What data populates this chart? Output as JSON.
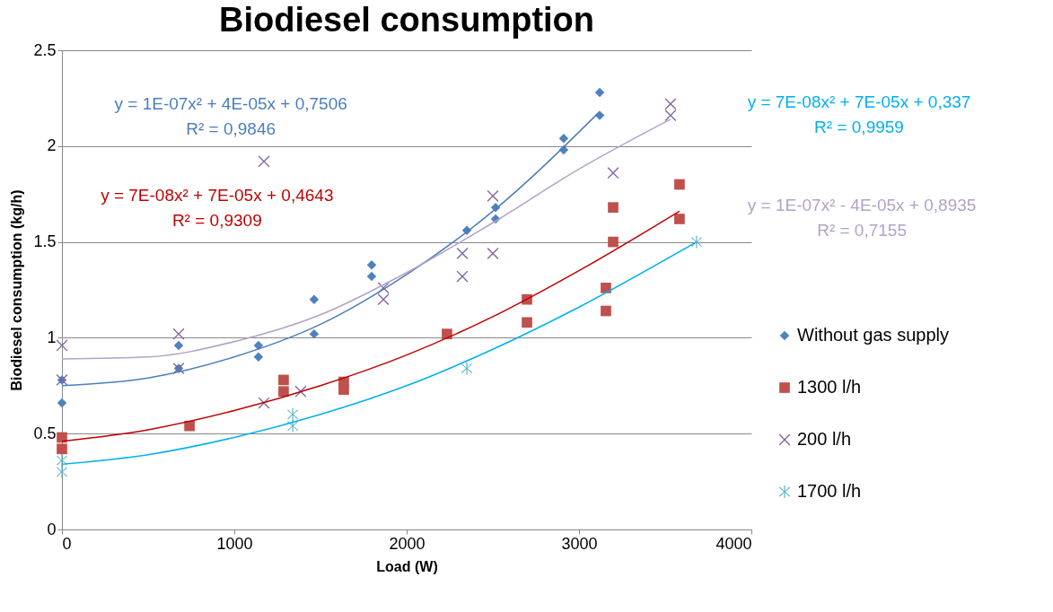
{
  "chart_data": {
    "type": "scatter",
    "title": "Biodiesel consumption",
    "xlabel": "Load (W)",
    "ylabel": "Biodiesel consumption (kg/h)",
    "xlim": [
      0,
      4000
    ],
    "xticks": [
      0,
      1000,
      2000,
      3000,
      4000
    ],
    "ylim": [
      0,
      2.5
    ],
    "yticks": [
      0,
      0.5,
      1,
      1.5,
      2,
      2.5
    ],
    "grid": "y",
    "legend": "right",
    "series": [
      {
        "name": "Without gas supply",
        "color": "#4f81bd",
        "marker": "diamond",
        "x": [
          0,
          0,
          677,
          677,
          1140,
          1140,
          1463,
          1463,
          1797,
          1797,
          2349,
          2516,
          2516,
          2911,
          2911,
          3120,
          3120
        ],
        "values": [
          0.78,
          0.66,
          0.96,
          0.84,
          0.96,
          0.9,
          1.2,
          1.02,
          1.38,
          1.32,
          1.56,
          1.68,
          1.62,
          2.04,
          1.98,
          2.28,
          2.16
        ]
      },
      {
        "name": "1300 l/h",
        "color": "#c0504d",
        "marker": "square",
        "x": [
          0,
          0,
          740,
          1286,
          1286,
          1635,
          1635,
          2234,
          2698,
          2698,
          3156,
          3156,
          3198,
          3198,
          3583,
          3583
        ],
        "values": [
          0.48,
          0.42,
          0.54,
          0.78,
          0.72,
          0.77,
          0.73,
          1.02,
          1.2,
          1.08,
          1.26,
          1.14,
          1.68,
          1.5,
          1.8,
          1.62
        ]
      },
      {
        "name": "200 l/h",
        "color": "#8064a2",
        "marker": "cross",
        "x": [
          0,
          0,
          677,
          677,
          1172,
          1172,
          1385,
          1865,
          1865,
          2323,
          2323,
          2500,
          2500,
          3198,
          3531,
          3531
        ],
        "values": [
          0.96,
          0.78,
          1.02,
          0.84,
          1.92,
          0.66,
          0.72,
          1.26,
          1.2,
          1.44,
          1.32,
          1.74,
          1.44,
          1.86,
          2.22,
          2.16
        ]
      },
      {
        "name": "1700 l/h",
        "color": "#4bacc6",
        "marker": "star",
        "x": [
          0,
          0,
          1339,
          1339,
          2349,
          3682
        ],
        "values": [
          0.36,
          0.3,
          0.6,
          0.54,
          0.84,
          1.5
        ]
      },
      {
        "type": "line",
        "color": "#4a7ebb",
        "marker": "none",
        "x": [
          0,
          500,
          1000,
          1500,
          2000,
          2500,
          3120
        ],
        "values": [
          0.75,
          0.79,
          0.9,
          1.07,
          1.33,
          1.66,
          2.18
        ]
      },
      {
        "type": "line",
        "color": "#c00000",
        "marker": "none",
        "x": [
          0,
          500,
          1000,
          1500,
          2000,
          2500,
          3000,
          3583
        ],
        "values": [
          0.46,
          0.52,
          0.62,
          0.75,
          0.91,
          1.11,
          1.35,
          1.66
        ]
      },
      {
        "type": "line",
        "color": "#b3a2c7",
        "marker": "none",
        "x": [
          0,
          500,
          1000,
          1500,
          2000,
          2500,
          3000,
          3531
        ],
        "values": [
          0.89,
          0.9,
          0.98,
          1.12,
          1.34,
          1.6,
          1.88,
          2.14
        ]
      },
      {
        "type": "line",
        "color": "#00b0f0",
        "marker": "none",
        "x": [
          0,
          500,
          1000,
          1500,
          2000,
          2500,
          3000,
          3682
        ],
        "values": [
          0.34,
          0.39,
          0.48,
          0.6,
          0.75,
          0.94,
          1.16,
          1.5
        ]
      }
    ],
    "annotations": [
      "y = 1E-07x² + 4E-05x + 0,7506\nR² = 0,9846",
      "y = 7E-08x² + 7E-05x + 0,4643\nR² = 0,9309",
      "y = 1E-07x² - 4E-05x + 0,8935\nR² = 0,7155",
      "y = 7E-08x² + 7E-05x + 0,337\nR² = 0,9959"
    ]
  }
}
